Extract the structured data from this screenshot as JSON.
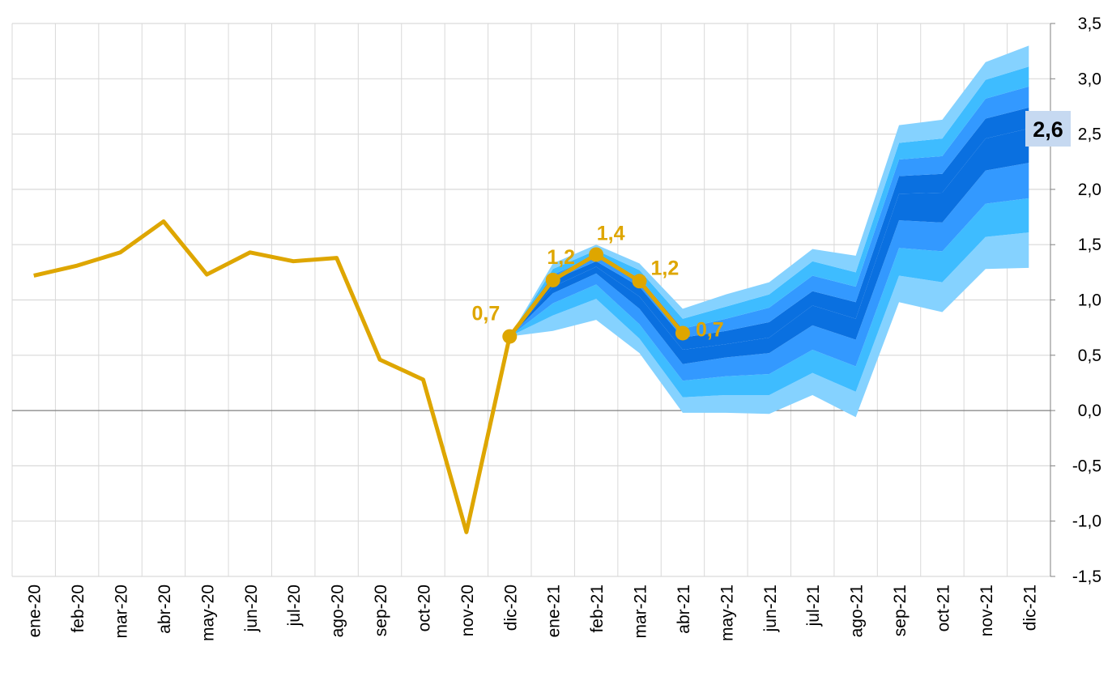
{
  "chart_data": {
    "type": "line",
    "categories": [
      "ene-20",
      "feb-20",
      "mar-20",
      "abr-20",
      "may-20",
      "jun-20",
      "jul-20",
      "ago-20",
      "sep-20",
      "oct-20",
      "nov-20",
      "dic-20",
      "ene-21",
      "feb-21",
      "mar-21",
      "abr-21",
      "may-21",
      "jun-21",
      "jul-21",
      "ago-21",
      "sep-21",
      "oct-21",
      "nov-21",
      "dic-21"
    ],
    "series": [
      {
        "color": "#dea600",
        "values": [
          1.22,
          1.31,
          1.43,
          1.71,
          1.23,
          1.43,
          1.35,
          1.38,
          0.46,
          0.28,
          -1.1,
          0.67,
          1.18,
          1.41,
          1.17,
          0.7,
          null,
          null,
          null,
          null,
          null,
          null,
          null,
          null
        ],
        "value_labels": [
          null,
          null,
          null,
          null,
          null,
          null,
          null,
          null,
          null,
          null,
          null,
          "0,7",
          "1,2",
          "1,4",
          "1,2",
          "0,7",
          null,
          null,
          null,
          null,
          null,
          null,
          null,
          null
        ]
      }
    ],
    "fan": {
      "colors": [
        "#85d2ff",
        "#3ebcff",
        "#3399ff",
        "#0a70e0",
        "#0a70e0",
        "#3399ff",
        "#3ebcff",
        "#85d2ff"
      ],
      "bounds": [
        [
          null,
          null,
          null,
          null,
          null,
          null,
          null,
          null,
          null,
          null,
          null,
          0.67,
          0.72,
          0.82,
          0.52,
          -0.02,
          -0.02,
          -0.03,
          0.14,
          -0.06,
          0.98,
          0.89,
          1.28,
          1.29
        ],
        [
          null,
          null,
          null,
          null,
          null,
          null,
          null,
          null,
          null,
          null,
          null,
          0.67,
          0.86,
          1.01,
          0.65,
          0.12,
          0.14,
          0.14,
          0.34,
          0.17,
          1.22,
          1.16,
          1.57,
          1.61
        ],
        [
          null,
          null,
          null,
          null,
          null,
          null,
          null,
          null,
          null,
          null,
          null,
          0.67,
          0.97,
          1.14,
          0.78,
          0.27,
          0.31,
          0.33,
          0.55,
          0.4,
          1.47,
          1.44,
          1.87,
          1.92
        ],
        [
          null,
          null,
          null,
          null,
          null,
          null,
          null,
          null,
          null,
          null,
          null,
          0.67,
          1.06,
          1.24,
          0.92,
          0.42,
          0.48,
          0.52,
          0.77,
          0.64,
          1.72,
          1.7,
          2.17,
          2.24
        ],
        [
          null,
          null,
          null,
          null,
          null,
          null,
          null,
          null,
          null,
          null,
          null,
          0.67,
          1.12,
          1.3,
          1.03,
          0.55,
          0.6,
          0.66,
          0.95,
          0.83,
          1.96,
          1.97,
          2.46,
          2.55
        ],
        [
          null,
          null,
          null,
          null,
          null,
          null,
          null,
          null,
          null,
          null,
          null,
          0.67,
          1.18,
          1.35,
          1.12,
          0.66,
          0.72,
          0.8,
          1.08,
          0.98,
          2.12,
          2.14,
          2.64,
          2.74
        ],
        [
          null,
          null,
          null,
          null,
          null,
          null,
          null,
          null,
          null,
          null,
          null,
          0.67,
          1.23,
          1.4,
          1.2,
          0.74,
          0.83,
          0.93,
          1.22,
          1.12,
          2.27,
          2.3,
          2.82,
          2.93
        ],
        [
          null,
          null,
          null,
          null,
          null,
          null,
          null,
          null,
          null,
          null,
          null,
          0.67,
          1.28,
          1.45,
          1.27,
          0.83,
          0.94,
          1.05,
          1.35,
          1.25,
          2.42,
          2.46,
          2.99,
          3.11
        ],
        [
          null,
          null,
          null,
          null,
          null,
          null,
          null,
          null,
          null,
          null,
          null,
          0.67,
          1.33,
          1.5,
          1.33,
          0.92,
          1.05,
          1.16,
          1.46,
          1.4,
          2.58,
          2.63,
          3.15,
          3.3
        ]
      ]
    },
    "annotation": "2,6",
    "ylim": [
      -1.5,
      3.5
    ],
    "yticks": [
      {
        "value": 3.5,
        "label": "3,5"
      },
      {
        "value": 3.0,
        "label": "3,0"
      },
      {
        "value": 2.5,
        "label": "2,5"
      },
      {
        "value": 2.0,
        "label": "2,0"
      },
      {
        "value": 1.5,
        "label": "1,5"
      },
      {
        "value": 1.0,
        "label": "1,0"
      },
      {
        "value": 0.5,
        "label": "0,5"
      },
      {
        "value": 0.0,
        "label": "0,0"
      },
      {
        "value": -0.5,
        "label": "-0,5"
      },
      {
        "value": -1.0,
        "label": "-1,0"
      },
      {
        "value": -1.5,
        "label": "-1,5"
      }
    ],
    "grid": true
  }
}
